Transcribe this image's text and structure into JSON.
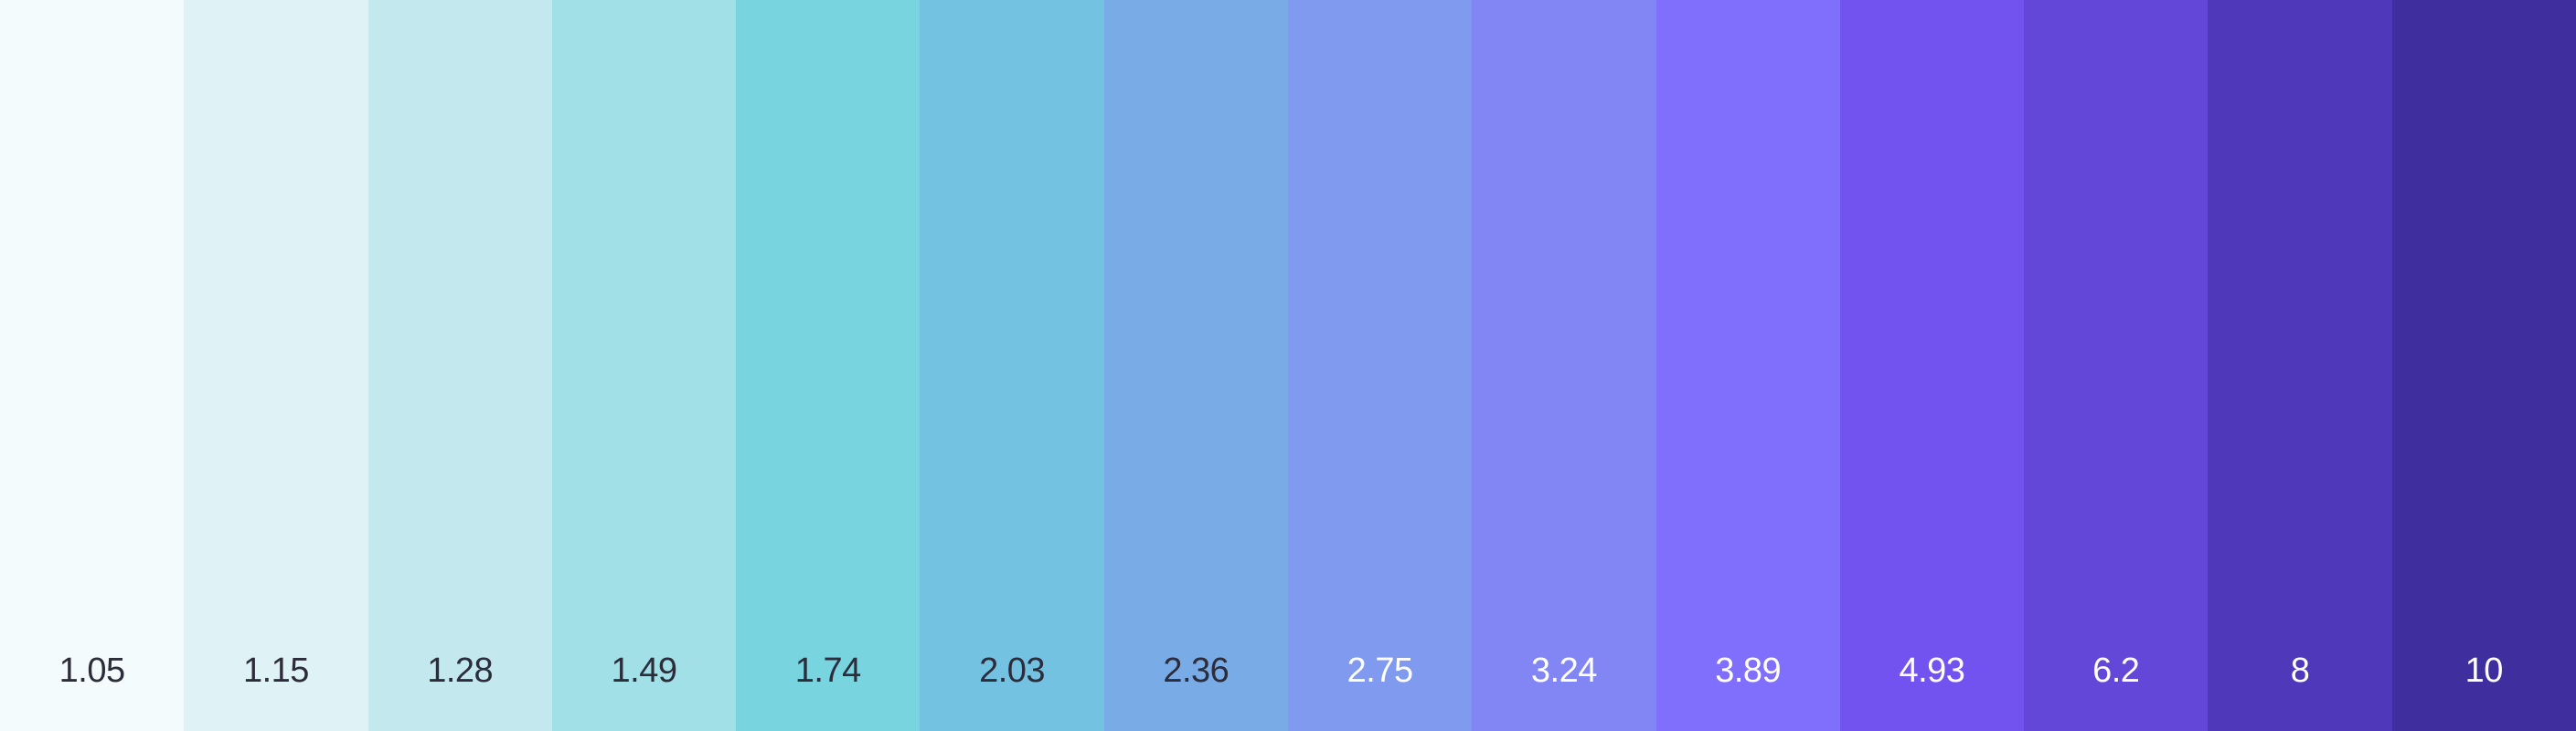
{
  "palette": {
    "swatches": [
      {
        "value": "1.05",
        "color": "#F3FBFD",
        "text_color": "#2C2C3A"
      },
      {
        "value": "1.15",
        "color": "#DFF2F5",
        "text_color": "#2C2C3A"
      },
      {
        "value": "1.28",
        "color": "#C3E9EE",
        "text_color": "#2C2C3A"
      },
      {
        "value": "1.49",
        "color": "#A0E0E6",
        "text_color": "#2C2C3A"
      },
      {
        "value": "1.74",
        "color": "#78D4DE",
        "text_color": "#2C2C3A"
      },
      {
        "value": "2.03",
        "color": "#73C2E1",
        "text_color": "#2C2C3A"
      },
      {
        "value": "2.36",
        "color": "#79ACE6",
        "text_color": "#2C2C3A"
      },
      {
        "value": "2.75",
        "color": "#7F9AEE",
        "text_color": "#FFFFFF"
      },
      {
        "value": "3.24",
        "color": "#8286F5",
        "text_color": "#FFFFFF"
      },
      {
        "value": "3.89",
        "color": "#806FFC",
        "text_color": "#FFFFFF"
      },
      {
        "value": "4.93",
        "color": "#7353F0",
        "text_color": "#FFFFFF"
      },
      {
        "value": "6.2",
        "color": "#6347D8",
        "text_color": "#FFFFFF"
      },
      {
        "value": "8",
        "color": "#4F39BA",
        "text_color": "#FFFFFF"
      },
      {
        "value": "10",
        "color": "#3E2E9E",
        "text_color": "#FFFFFF"
      }
    ]
  }
}
